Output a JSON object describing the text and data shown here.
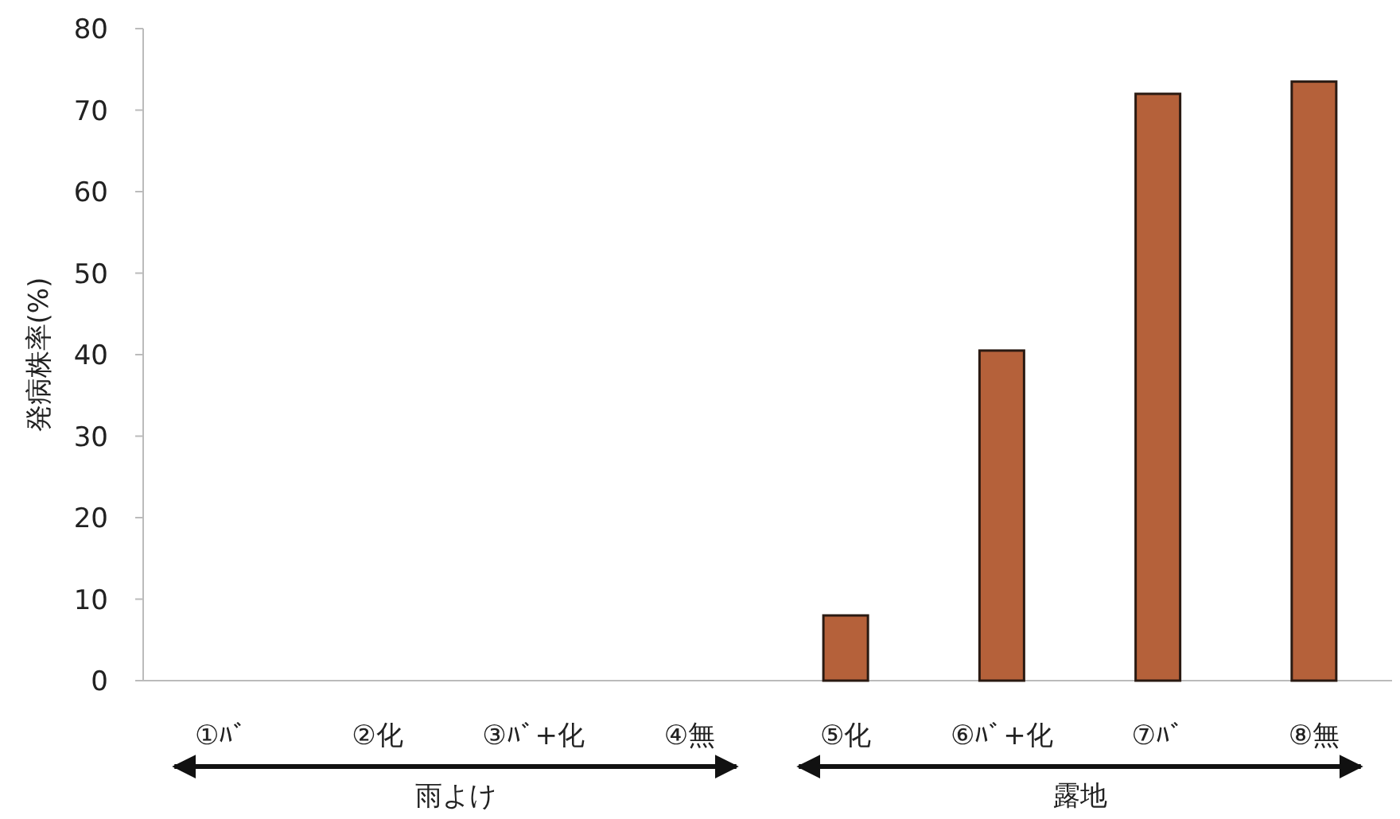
{
  "chart_data": {
    "type": "bar",
    "ylabel": "発病株率(%)",
    "categories": [
      "①ﾊﾞ",
      "②化",
      "③ﾊﾞ+化",
      "④無",
      "⑤化",
      "⑥ﾊﾞ+化",
      "⑦ﾊﾞ",
      "⑧無"
    ],
    "values": [
      0,
      0,
      0,
      0,
      8,
      40.5,
      72,
      73.5
    ],
    "color": "#b5613a",
    "ylim": [
      0,
      80
    ],
    "yticks": [
      0,
      10,
      20,
      30,
      40,
      50,
      60,
      70,
      80
    ],
    "grid": false,
    "annotations": [
      "雨よけ",
      "露地"
    ]
  }
}
